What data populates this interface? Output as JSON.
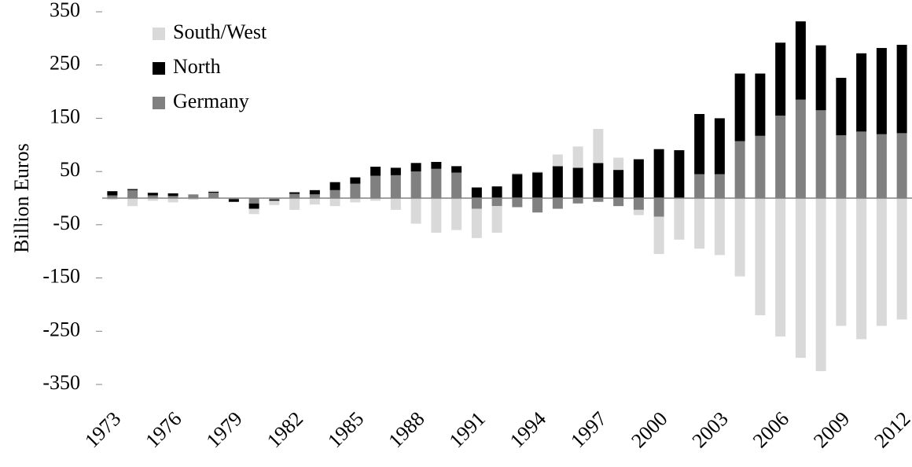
{
  "chart_data": {
    "type": "stacked-bar",
    "y_label": "Billion Euros",
    "categories": [
      "1973",
      null,
      null,
      "1976",
      null,
      null,
      "1979",
      null,
      null,
      "1982",
      null,
      null,
      "1985",
      null,
      null,
      "1988",
      null,
      null,
      "1991",
      null,
      null,
      "1994",
      null,
      null,
      "1997",
      null,
      null,
      "2000",
      null,
      null,
      "2003",
      null,
      null,
      "2006",
      null,
      null,
      "2009",
      null,
      null,
      "2012"
    ],
    "series": [
      {
        "name": "South/West",
        "color": "#d9d9d9",
        "values": [
          -3,
          -15,
          -5,
          -8,
          -3,
          2,
          0,
          -10,
          -8,
          -22,
          -12,
          -15,
          -8,
          -5,
          -22,
          -48,
          -65,
          -60,
          -55,
          -50,
          2,
          2,
          22,
          40,
          64,
          23,
          -10,
          -70,
          -78,
          -95,
          -107,
          -147,
          -220,
          -260,
          -300,
          -325,
          -240,
          -265,
          -240,
          -228
        ]
      },
      {
        "name": "North",
        "color": "#000000",
        "values": [
          8,
          2,
          5,
          5,
          0,
          2,
          -5,
          -10,
          -2,
          3,
          8,
          15,
          12,
          17,
          14,
          16,
          13,
          12,
          20,
          22,
          45,
          48,
          60,
          57,
          66,
          53,
          73,
          92,
          90,
          113,
          105,
          127,
          117,
          137,
          147,
          122,
          108,
          147,
          162,
          166
        ]
      },
      {
        "name": "Germany",
        "color": "#808080",
        "values": [
          5,
          15,
          5,
          4,
          7,
          10,
          -2,
          -10,
          -3,
          8,
          7,
          15,
          27,
          42,
          43,
          50,
          55,
          48,
          -20,
          -15,
          -17,
          -27,
          -20,
          -10,
          -7,
          -15,
          -22,
          -35,
          0,
          45,
          45,
          107,
          117,
          155,
          185,
          165,
          118,
          125,
          120,
          122
        ]
      }
    ],
    "ylim": [
      -350,
      350
    ],
    "yticks": [
      -350,
      -250,
      -150,
      -50,
      50,
      150,
      250,
      350
    ],
    "legend": "top-left"
  }
}
